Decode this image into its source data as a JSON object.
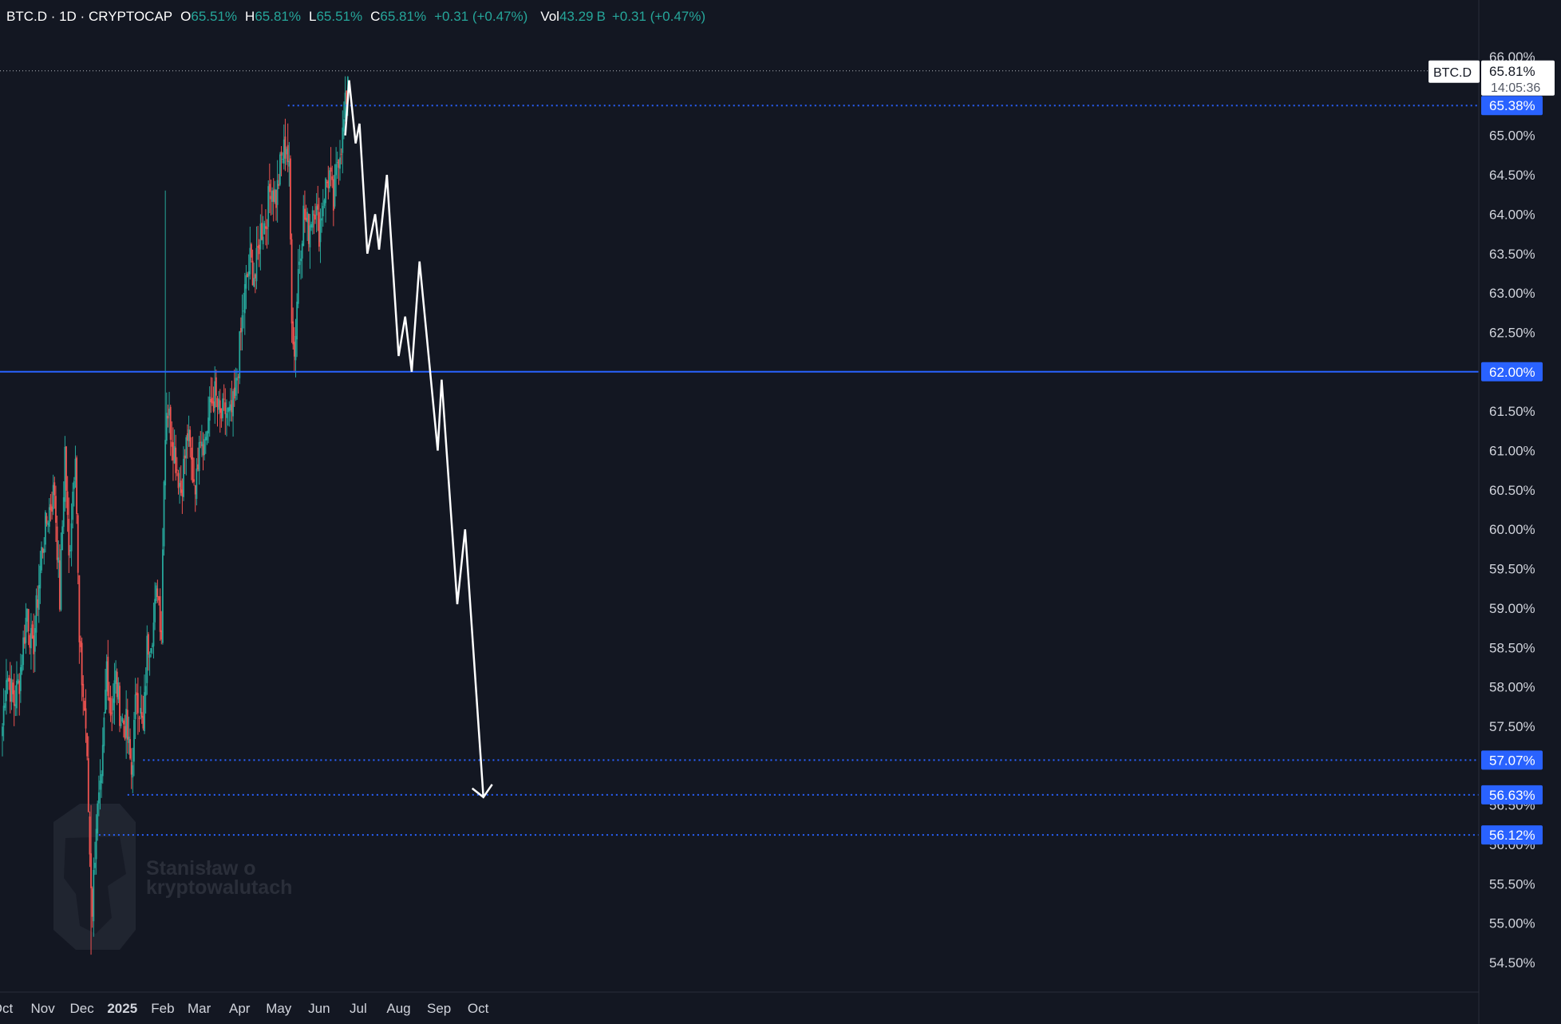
{
  "header": {
    "symbol": "BTC.D · 1D · CRYPTOCAP",
    "open_label": "O",
    "open": "65.51%",
    "high_label": "H",
    "high": "65.81%",
    "low_label": "L",
    "low": "65.51%",
    "close_label": "C",
    "close": "65.81%",
    "change": "+0.31 (+0.47%)",
    "volume_label": "Vol",
    "volume": "43.29",
    "volume_unit": "B",
    "volume_change": "+0.31 (+0.47%)"
  },
  "price_scale": {
    "unit_button": "%",
    "last_symbol": "BTC.D",
    "last_value": "65.81%",
    "countdown": "14:05:36"
  },
  "watermark": {
    "line1": "Stanisław o",
    "line2": "kryptowalutach"
  },
  "colors": {
    "background": "#131722",
    "up": "#26a69a",
    "down": "#ef5350",
    "level_line": "#2962ff",
    "projection": "#ffffff",
    "label_bg": "#2962ff"
  },
  "chart_data": {
    "type": "candlestick",
    "title": "BTC.D · 1D · CRYPTOCAP",
    "y_unit": "%",
    "ylim": [
      54.2,
      66.25
    ],
    "y_ticks": [
      "54.50%",
      "55.00%",
      "55.50%",
      "56.00%",
      "56.50%",
      "57.50%",
      "58.00%",
      "58.50%",
      "59.00%",
      "59.50%",
      "60.00%",
      "60.50%",
      "61.00%",
      "61.50%",
      "62.50%",
      "63.00%",
      "63.50%",
      "64.00%",
      "64.50%",
      "65.00%",
      "66.00%"
    ],
    "x_ticks": [
      {
        "label": "Oct",
        "date": "2024-10-01"
      },
      {
        "label": "Nov",
        "date": "2024-11-01"
      },
      {
        "label": "Dec",
        "date": "2024-12-01"
      },
      {
        "label": "2025",
        "date": "2025-01-01",
        "bold": true
      },
      {
        "label": "Feb",
        "date": "2025-02-01"
      },
      {
        "label": "Mar",
        "date": "2025-03-01"
      },
      {
        "label": "Apr",
        "date": "2025-04-01"
      },
      {
        "label": "May",
        "date": "2025-05-01"
      },
      {
        "label": "Jun",
        "date": "2025-06-01"
      },
      {
        "label": "Jul",
        "date": "2025-07-01"
      },
      {
        "label": "Aug",
        "date": "2025-08-01"
      },
      {
        "label": "Sep",
        "date": "2025-09-01"
      },
      {
        "label": "Oct",
        "date": "2025-10-01"
      }
    ],
    "price_path": [
      {
        "date": "2024-10-01",
        "value": 57.5
      },
      {
        "date": "2024-10-04",
        "value": 58.2
      },
      {
        "date": "2024-10-10",
        "value": 57.8
      },
      {
        "date": "2024-10-14",
        "value": 58.1
      },
      {
        "date": "2024-10-20",
        "value": 59.0
      },
      {
        "date": "2024-10-24",
        "value": 58.4
      },
      {
        "date": "2024-10-31",
        "value": 59.7
      },
      {
        "date": "2024-11-05",
        "value": 60.2
      },
      {
        "date": "2024-11-10",
        "value": 60.5
      },
      {
        "date": "2024-11-14",
        "value": 59.1
      },
      {
        "date": "2024-11-18",
        "value": 61.0
      },
      {
        "date": "2024-11-21",
        "value": 59.6
      },
      {
        "date": "2024-11-26",
        "value": 61.1
      },
      {
        "date": "2024-11-29",
        "value": 58.5
      },
      {
        "date": "2024-12-04",
        "value": 57.5
      },
      {
        "date": "2024-12-07",
        "value": 55.9
      },
      {
        "date": "2024-12-09",
        "value": 55.2
      },
      {
        "date": "2024-12-12",
        "value": 56.3
      },
      {
        "date": "2024-12-16",
        "value": 56.7
      },
      {
        "date": "2024-12-20",
        "value": 58.3
      },
      {
        "date": "2024-12-23",
        "value": 57.7
      },
      {
        "date": "2024-12-27",
        "value": 58.1
      },
      {
        "date": "2024-12-31",
        "value": 57.6
      },
      {
        "date": "2025-01-04",
        "value": 57.5
      },
      {
        "date": "2025-01-08",
        "value": 56.9
      },
      {
        "date": "2025-01-12",
        "value": 58.0
      },
      {
        "date": "2025-01-17",
        "value": 57.4
      },
      {
        "date": "2025-01-20",
        "value": 58.5
      },
      {
        "date": "2025-01-25",
        "value": 58.8
      },
      {
        "date": "2025-01-28",
        "value": 59.3
      },
      {
        "date": "2025-01-31",
        "value": 58.7
      },
      {
        "date": "2025-02-02",
        "value": 60.8
      },
      {
        "date": "2025-02-04",
        "value": 61.6
      },
      {
        "date": "2025-02-07",
        "value": 61.3
      },
      {
        "date": "2025-02-11",
        "value": 60.9
      },
      {
        "date": "2025-02-15",
        "value": 60.5
      },
      {
        "date": "2025-02-20",
        "value": 61.2
      },
      {
        "date": "2025-02-24",
        "value": 60.7
      },
      {
        "date": "2025-02-27",
        "value": 60.6
      },
      {
        "date": "2025-03-01",
        "value": 61.3
      },
      {
        "date": "2025-03-05",
        "value": 61.1
      },
      {
        "date": "2025-03-10",
        "value": 61.6
      },
      {
        "date": "2025-03-13",
        "value": 61.7
      },
      {
        "date": "2025-03-17",
        "value": 61.4
      },
      {
        "date": "2025-03-21",
        "value": 61.5
      },
      {
        "date": "2025-03-25",
        "value": 61.4
      },
      {
        "date": "2025-03-28",
        "value": 61.6
      },
      {
        "date": "2025-04-01",
        "value": 62.3
      },
      {
        "date": "2025-04-05",
        "value": 63.0
      },
      {
        "date": "2025-04-09",
        "value": 63.4
      },
      {
        "date": "2025-04-13",
        "value": 63.2
      },
      {
        "date": "2025-04-17",
        "value": 63.8
      },
      {
        "date": "2025-04-21",
        "value": 63.9
      },
      {
        "date": "2025-04-25",
        "value": 64.4
      },
      {
        "date": "2025-04-29",
        "value": 64.2
      },
      {
        "date": "2025-05-03",
        "value": 64.7
      },
      {
        "date": "2025-05-07",
        "value": 64.9
      },
      {
        "date": "2025-05-09",
        "value": 64.5
      },
      {
        "date": "2025-05-11",
        "value": 62.8
      },
      {
        "date": "2025-05-13",
        "value": 62.2
      },
      {
        "date": "2025-05-16",
        "value": 63.3
      },
      {
        "date": "2025-05-20",
        "value": 64.0
      },
      {
        "date": "2025-05-24",
        "value": 63.8
      },
      {
        "date": "2025-05-28",
        "value": 64.2
      },
      {
        "date": "2025-06-01",
        "value": 63.8
      },
      {
        "date": "2025-06-05",
        "value": 64.3
      },
      {
        "date": "2025-06-09",
        "value": 64.5
      },
      {
        "date": "2025-06-12",
        "value": 64.1
      },
      {
        "date": "2025-06-15",
        "value": 64.7
      },
      {
        "date": "2025-06-19",
        "value": 65.0
      },
      {
        "date": "2025-06-22",
        "value": 65.5
      },
      {
        "date": "2025-06-23",
        "value": 65.81
      }
    ],
    "notable_wicks": [
      {
        "date": "2025-02-03",
        "high": 64.3,
        "low": 62.0
      },
      {
        "date": "2024-12-08",
        "high": 56.5,
        "low": 54.6
      }
    ],
    "horizontal_levels": [
      {
        "value": 62.0,
        "label": "62.00%",
        "style": "solid",
        "from_date": "2024-10-01"
      },
      {
        "value": 65.38,
        "label": "65.38%",
        "style": "dotted",
        "from_date": "2025-05-08"
      },
      {
        "value": 57.07,
        "label": "57.07%",
        "style": "dotted",
        "from_date": "2025-01-17"
      },
      {
        "value": 56.63,
        "label": "56.63%",
        "style": "dotted",
        "from_date": "2025-01-05"
      },
      {
        "value": 56.12,
        "label": "56.12%",
        "style": "dotted",
        "from_date": "2024-12-14"
      }
    ],
    "projection_path": [
      {
        "date": "2025-06-21",
        "value": 65.0
      },
      {
        "date": "2025-06-24",
        "value": 65.7
      },
      {
        "date": "2025-06-29",
        "value": 64.9
      },
      {
        "date": "2025-07-02",
        "value": 65.15
      },
      {
        "date": "2025-07-08",
        "value": 63.5
      },
      {
        "date": "2025-07-14",
        "value": 64.0
      },
      {
        "date": "2025-07-17",
        "value": 63.55
      },
      {
        "date": "2025-07-23",
        "value": 64.5
      },
      {
        "date": "2025-08-01",
        "value": 62.2
      },
      {
        "date": "2025-08-06",
        "value": 62.7
      },
      {
        "date": "2025-08-11",
        "value": 62.0
      },
      {
        "date": "2025-08-17",
        "value": 63.4
      },
      {
        "date": "2025-08-31",
        "value": 61.0
      },
      {
        "date": "2025-09-03",
        "value": 61.9
      },
      {
        "date": "2025-09-15",
        "value": 59.05
      },
      {
        "date": "2025-09-21",
        "value": 60.0
      },
      {
        "date": "2025-10-05",
        "value": 56.6
      }
    ]
  }
}
